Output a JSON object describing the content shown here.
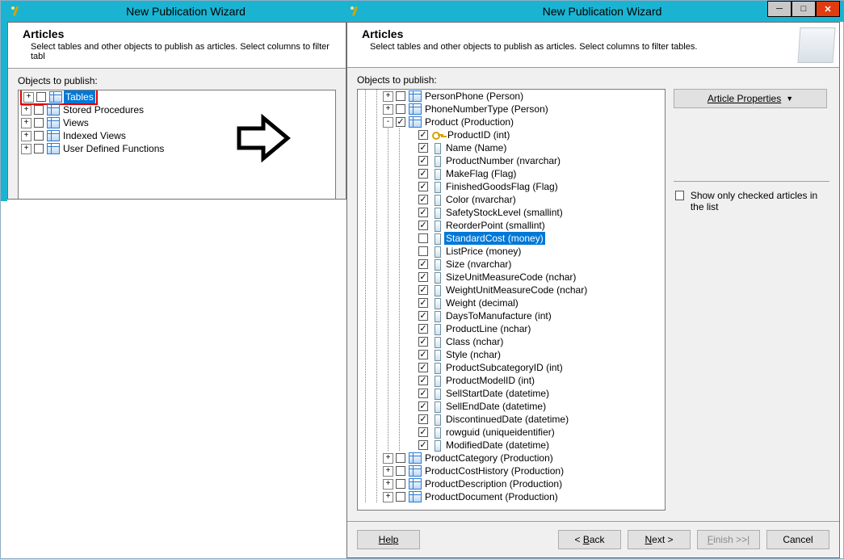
{
  "left": {
    "titlebar": "New Publication Wizard",
    "header_title": "Articles",
    "header_desc": "Select tables and other objects to publish as articles. Select columns to filter tabl",
    "objects_label": "Objects to publish:",
    "tree": [
      {
        "label": "Tables",
        "selected": true,
        "highlighted_box": true
      },
      {
        "label": "Stored Procedures"
      },
      {
        "label": "Views"
      },
      {
        "label": "Indexed Views"
      },
      {
        "label": "User Defined Functions"
      }
    ]
  },
  "right": {
    "titlebar": "New Publication Wizard",
    "header_title": "Articles",
    "header_desc": "Select tables and other objects to publish as articles. Select columns to filter tables.",
    "objects_label": "Objects to publish:",
    "article_properties_btn": "Article Properties",
    "show_only_label": "Show only checked articles in the list",
    "top_tables": [
      {
        "label": "PersonPhone (Person)",
        "checked": false,
        "expander": "+"
      },
      {
        "label": "PhoneNumberType (Person)",
        "checked": false,
        "expander": "+"
      }
    ],
    "product_table": {
      "label": "Product (Production)",
      "checked": true,
      "expander": "-"
    },
    "columns": [
      {
        "label": "ProductID (int)",
        "checked": true,
        "key": true
      },
      {
        "label": "Name (Name)",
        "checked": true
      },
      {
        "label": "ProductNumber (nvarchar)",
        "checked": true
      },
      {
        "label": "MakeFlag (Flag)",
        "checked": true
      },
      {
        "label": "FinishedGoodsFlag (Flag)",
        "checked": true
      },
      {
        "label": "Color (nvarchar)",
        "checked": true
      },
      {
        "label": "SafetyStockLevel (smallint)",
        "checked": true
      },
      {
        "label": "ReorderPoint (smallint)",
        "checked": true
      },
      {
        "label": "StandardCost (money)",
        "checked": false,
        "selected": true
      },
      {
        "label": "ListPrice (money)",
        "checked": false
      },
      {
        "label": "Size (nvarchar)",
        "checked": true
      },
      {
        "label": "SizeUnitMeasureCode (nchar)",
        "checked": true
      },
      {
        "label": "WeightUnitMeasureCode (nchar)",
        "checked": true
      },
      {
        "label": "Weight (decimal)",
        "checked": true
      },
      {
        "label": "DaysToManufacture (int)",
        "checked": true
      },
      {
        "label": "ProductLine (nchar)",
        "checked": true
      },
      {
        "label": "Class (nchar)",
        "checked": true
      },
      {
        "label": "Style (nchar)",
        "checked": true
      },
      {
        "label": "ProductSubcategoryID (int)",
        "checked": true
      },
      {
        "label": "ProductModelID (int)",
        "checked": true
      },
      {
        "label": "SellStartDate (datetime)",
        "checked": true
      },
      {
        "label": "SellEndDate (datetime)",
        "checked": true
      },
      {
        "label": "DiscontinuedDate (datetime)",
        "checked": true
      },
      {
        "label": "rowguid (uniqueidentifier)",
        "checked": true
      },
      {
        "label": "ModifiedDate (datetime)",
        "checked": true
      }
    ],
    "bottom_tables": [
      {
        "label": "ProductCategory (Production)",
        "checked": false,
        "expander": "+"
      },
      {
        "label": "ProductCostHistory (Production)",
        "checked": false,
        "expander": "+"
      },
      {
        "label": "ProductDescription (Production)",
        "checked": false,
        "expander": "+"
      },
      {
        "label": "ProductDocument (Production)",
        "checked": false,
        "expander": "+"
      }
    ],
    "buttons": {
      "help": "Help",
      "back": "< Back",
      "next": "Next >",
      "finish": "Finish >>|",
      "cancel": "Cancel"
    }
  }
}
